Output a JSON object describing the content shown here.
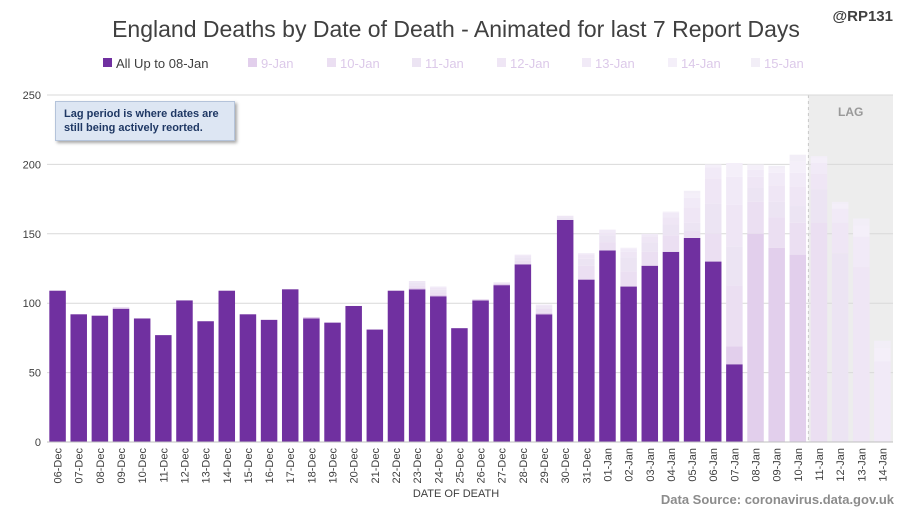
{
  "header": {
    "title": "England Deaths by Date of Death - Animated for last 7 Report Days",
    "handle": "@RP131"
  },
  "note": {
    "line1": "Lag period is where dates are",
    "line2": "still being actively reorted."
  },
  "lag_label": "LAG",
  "source": "Data Source: coronavirus.data.gov.uk",
  "colors": {
    "base": "#7030a0",
    "layers": [
      "#e2cfec",
      "#ebdff2",
      "#ece4f3",
      "#efe6f5",
      "#f1eaf7",
      "#f4eff9",
      "#f2eef7"
    ],
    "lag_shade": "#ededed",
    "grid": "#d9d9d9",
    "axis": "#bfbfbf"
  },
  "chart_data": {
    "type": "bar",
    "stacked": true,
    "title": "England Deaths by Date of Death - Animated for last 7 Report Days",
    "xlabel": "DATE OF DEATH",
    "ylabel": "",
    "ylim": [
      0,
      250
    ],
    "yticks": [
      0,
      50,
      100,
      150,
      200,
      250
    ],
    "grid": true,
    "legend_position": "top",
    "lag_start_category": "11-Jan",
    "categories": [
      "06-Dec",
      "07-Dec",
      "08-Dec",
      "09-Dec",
      "10-Dec",
      "11-Dec",
      "12-Dec",
      "13-Dec",
      "14-Dec",
      "15-Dec",
      "16-Dec",
      "17-Dec",
      "18-Dec",
      "19-Dec",
      "20-Dec",
      "21-Dec",
      "22-Dec",
      "23-Dec",
      "24-Dec",
      "25-Dec",
      "26-Dec",
      "27-Dec",
      "28-Dec",
      "29-Dec",
      "30-Dec",
      "31-Dec",
      "01-Jan",
      "02-Jan",
      "03-Jan",
      "04-Jan",
      "05-Jan",
      "06-Jan",
      "07-Jan",
      "08-Jan",
      "09-Jan",
      "10-Jan",
      "11-Jan",
      "12-Jan",
      "13-Jan",
      "14-Jan"
    ],
    "series": [
      {
        "name": "All Up to 08-Jan",
        "values": [
          109,
          92,
          91,
          96,
          89,
          77,
          102,
          87,
          109,
          92,
          88,
          110,
          89,
          86,
          98,
          81,
          109,
          110,
          105,
          82,
          102,
          113,
          128,
          92,
          160,
          117,
          138,
          112,
          127,
          137,
          147,
          130,
          56,
          0,
          0,
          0,
          0,
          0,
          0,
          0
        ]
      },
      {
        "name": "9-Jan",
        "values": [
          0,
          0,
          0,
          1,
          0,
          0,
          0,
          0,
          0,
          0,
          0,
          0,
          1,
          0,
          0,
          0,
          0,
          1,
          1,
          0,
          0,
          1,
          0,
          1,
          0,
          0,
          0,
          0,
          0,
          0,
          0,
          0,
          13,
          150,
          140,
          135,
          0,
          0,
          0,
          0
        ]
      },
      {
        "name": "10-Jan",
        "values": [
          0,
          0,
          0,
          0,
          0,
          0,
          0,
          0,
          0,
          0,
          0,
          0,
          0,
          0,
          0,
          0,
          0,
          2,
          2,
          0,
          1,
          0,
          3,
          3,
          0,
          10,
          6,
          11,
          10,
          12,
          5,
          20,
          44,
          23,
          22,
          23,
          158,
          0,
          0,
          0
        ]
      },
      {
        "name": "11-Jan",
        "values": [
          0,
          0,
          0,
          0,
          0,
          0,
          0,
          0,
          0,
          0,
          0,
          0,
          0,
          0,
          0,
          0,
          0,
          2,
          2,
          0,
          0,
          1,
          2,
          1,
          2,
          5,
          5,
          10,
          7,
          8,
          6,
          22,
          28,
          10,
          11,
          12,
          24,
          136,
          0,
          0
        ]
      },
      {
        "name": "12-Jan",
        "values": [
          0,
          0,
          0,
          0,
          0,
          0,
          0,
          0,
          0,
          0,
          0,
          0,
          0,
          0,
          0,
          0,
          0,
          1,
          1,
          0,
          0,
          0,
          1,
          1,
          1,
          3,
          2,
          4,
          4,
          5,
          11,
          18,
          30,
          8,
          12,
          14,
          11,
          22,
          126,
          0
        ]
      },
      {
        "name": "13-Jan",
        "values": [
          0,
          0,
          0,
          0,
          0,
          0,
          0,
          0,
          0,
          0,
          0,
          0,
          0,
          0,
          0,
          0,
          0,
          0,
          1,
          0,
          0,
          0,
          1,
          1,
          0,
          1,
          2,
          2,
          2,
          3,
          7,
          8,
          20,
          5,
          9,
          10,
          8,
          10,
          22,
          58
        ]
      },
      {
        "name": "14-Jan",
        "values": [
          0,
          0,
          0,
          0,
          0,
          0,
          0,
          0,
          0,
          0,
          0,
          0,
          0,
          0,
          0,
          0,
          0,
          0,
          0,
          0,
          0,
          0,
          0,
          0,
          0,
          0,
          0,
          1,
          0,
          1,
          3,
          2,
          10,
          3,
          3,
          8,
          4,
          4,
          8,
          10
        ]
      },
      {
        "name": "15-Jan",
        "values": [
          0,
          0,
          0,
          0,
          0,
          0,
          0,
          0,
          0,
          0,
          0,
          0,
          0,
          0,
          0,
          0,
          0,
          0,
          0,
          0,
          0,
          0,
          0,
          0,
          0,
          0,
          0,
          0,
          0,
          0,
          2,
          0,
          0,
          1,
          2,
          5,
          1,
          1,
          5,
          5
        ]
      }
    ]
  }
}
